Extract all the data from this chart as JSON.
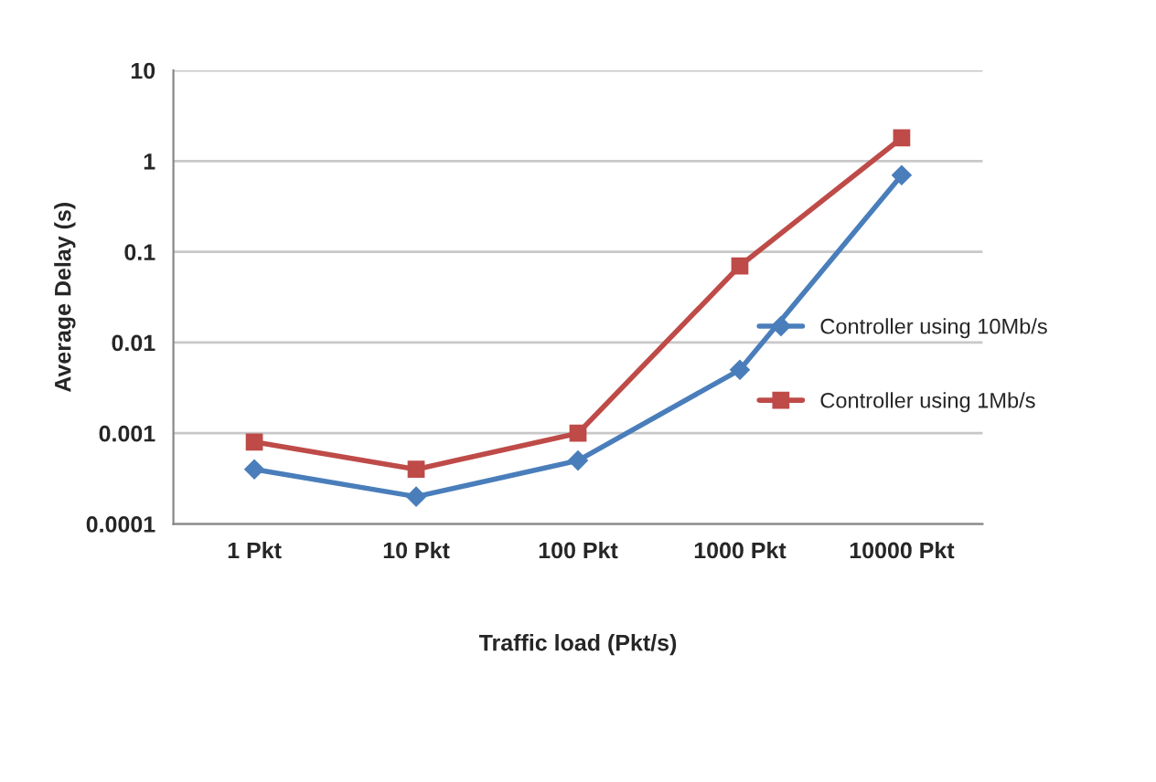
{
  "chart_data": {
    "type": "line",
    "xlabel": "Traffic load (Pkt/s)",
    "ylabel": "Average Delay (s)",
    "categories": [
      "1 Pkt",
      "10 Pkt",
      "100 Pkt",
      "1000 Pkt",
      "10000 Pkt"
    ],
    "series": [
      {
        "name": "Controller using 10Mb/s",
        "color": "#4a7ebb",
        "marker": "diamond",
        "values": [
          0.0004,
          0.0002,
          0.0005,
          0.005,
          0.7
        ]
      },
      {
        "name": "Controller using 1Mb/s",
        "color": "#be4b48",
        "marker": "square",
        "values": [
          0.0008,
          0.0004,
          0.001,
          0.07,
          1.8
        ]
      }
    ],
    "log": "y",
    "ylim": [
      0.0001,
      10
    ],
    "yticks": [
      {
        "value": 0.0001,
        "label": "0.0001"
      },
      {
        "value": 0.001,
        "label": "0.001"
      },
      {
        "value": 0.01,
        "label": "0.01"
      },
      {
        "value": 0.1,
        "label": "0.1"
      },
      {
        "value": 1,
        "label": "1"
      },
      {
        "value": 10,
        "label": "10"
      }
    ],
    "grid": "y",
    "legend": "right",
    "line_style": "solid"
  }
}
